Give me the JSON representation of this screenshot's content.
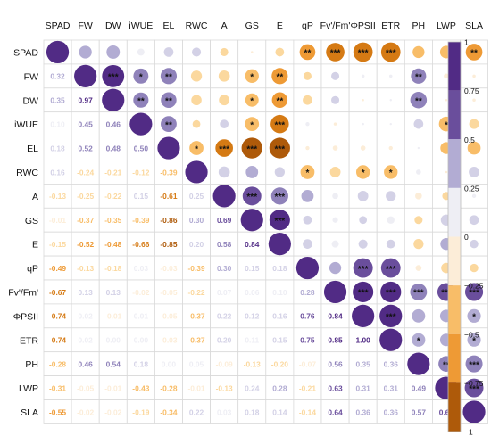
{
  "chart_data": {
    "type": "heatmap",
    "subtype": "correlation-matrix",
    "variables": [
      "SPAD",
      "FW",
      "DW",
      "iWUE",
      "EL",
      "RWC",
      "A",
      "GS",
      "E",
      "qP",
      "Fv'/Fm'",
      "ΦPSII",
      "ETR",
      "PH",
      "LWP",
      "SLA"
    ],
    "lower_triangle_values": [
      [],
      [
        0.32
      ],
      [
        0.35,
        0.97
      ],
      [
        0.1,
        0.45,
        0.46
      ],
      [
        0.18,
        0.52,
        0.48,
        0.5
      ],
      [
        0.16,
        -0.24,
        -0.21,
        -0.12,
        -0.39
      ],
      [
        -0.13,
        -0.25,
        -0.22,
        0.15,
        -0.61,
        0.25
      ],
      [
        -0.01,
        -0.37,
        -0.35,
        -0.39,
        -0.86,
        0.3,
        0.69
      ],
      [
        -0.15,
        -0.52,
        -0.48,
        -0.66,
        -0.85,
        0.2,
        0.58,
        0.84
      ],
      [
        -0.49,
        -0.13,
        -0.18,
        0.03,
        -0.03,
        -0.39,
        0.3,
        0.15,
        0.18
      ],
      [
        -0.67,
        0.13,
        0.13,
        -0.02,
        -0.05,
        -0.22,
        0.07,
        0.06,
        0.1,
        0.28
      ],
      [
        -0.74,
        0.02,
        -0.01,
        0.01,
        -0.05,
        -0.37,
        0.22,
        0.12,
        0.16,
        0.76,
        0.84
      ],
      [
        -0.74,
        0.02,
        0.0,
        0.0,
        -0.03,
        -0.37,
        0.2,
        0.11,
        0.15,
        0.75,
        0.85,
        1.0
      ],
      [
        -0.28,
        0.46,
        0.54,
        0.18,
        0.0,
        0.05,
        -0.09,
        -0.13,
        -0.2,
        -0.07,
        0.56,
        0.35,
        0.36
      ],
      [
        -0.31,
        -0.05,
        -0.01,
        -0.43,
        -0.28,
        -0.01,
        -0.13,
        0.24,
        0.28,
        -0.21,
        0.63,
        0.31,
        0.31,
        0.49
      ],
      [
        -0.55,
        -0.02,
        -0.02,
        -0.19,
        -0.34,
        0.22,
        0.03,
        0.18,
        0.14,
        -0.14,
        0.64,
        0.36,
        0.36,
        0.57,
        0.69
      ]
    ],
    "significance": [
      [
        "SPAD",
        "qP",
        "**"
      ],
      [
        "SPAD",
        "Fv'/Fm'",
        "***"
      ],
      [
        "SPAD",
        "ΦPSII",
        "***"
      ],
      [
        "SPAD",
        "ETR",
        "***"
      ],
      [
        "SPAD",
        "SLA",
        "**"
      ],
      [
        "FW",
        "DW",
        "***"
      ],
      [
        "FW",
        "iWUE",
        "*"
      ],
      [
        "FW",
        "EL",
        "**"
      ],
      [
        "FW",
        "GS",
        "*"
      ],
      [
        "FW",
        "E",
        "**"
      ],
      [
        "FW",
        "PH",
        "**"
      ],
      [
        "DW",
        "iWUE",
        "**"
      ],
      [
        "DW",
        "EL",
        "**"
      ],
      [
        "DW",
        "GS",
        "*"
      ],
      [
        "DW",
        "E",
        "**"
      ],
      [
        "DW",
        "PH",
        "**"
      ],
      [
        "iWUE",
        "EL",
        "**"
      ],
      [
        "iWUE",
        "GS",
        "*"
      ],
      [
        "iWUE",
        "E",
        "***"
      ],
      [
        "iWUE",
        "LWP",
        "*"
      ],
      [
        "EL",
        "RWC",
        "*"
      ],
      [
        "EL",
        "A",
        "***"
      ],
      [
        "EL",
        "GS",
        "***"
      ],
      [
        "EL",
        "E",
        "***"
      ],
      [
        "RWC",
        "qP",
        "*"
      ],
      [
        "RWC",
        "ΦPSII",
        "*"
      ],
      [
        "RWC",
        "ETR",
        "*"
      ],
      [
        "A",
        "GS",
        "***"
      ],
      [
        "A",
        "E",
        "***"
      ],
      [
        "GS",
        "E",
        "***"
      ],
      [
        "qP",
        "ΦPSII",
        "***"
      ],
      [
        "qP",
        "ETR",
        "***"
      ],
      [
        "Fv'/Fm'",
        "ΦPSII",
        "***"
      ],
      [
        "Fv'/Fm'",
        "ETR",
        "***"
      ],
      [
        "Fv'/Fm'",
        "PH",
        "***"
      ],
      [
        "Fv'/Fm'",
        "LWP",
        "***"
      ],
      [
        "Fv'/Fm'",
        "SLA",
        "***"
      ],
      [
        "ΦPSII",
        "ETR",
        "***"
      ],
      [
        "ΦPSII",
        "SLA",
        "*"
      ],
      [
        "ETR",
        "PH",
        "*"
      ],
      [
        "ETR",
        "SLA",
        "*"
      ],
      [
        "PH",
        "LWP",
        "**"
      ],
      [
        "PH",
        "SLA",
        "***"
      ],
      [
        "LWP",
        "SLA",
        "***"
      ]
    ],
    "colorbar": {
      "ticks": [
        "1",
        "0.75",
        "0.5",
        "0.25",
        "0",
        "−0.25",
        "−0.5",
        "−0.75",
        "−1"
      ],
      "range": [
        -1,
        1
      ]
    },
    "colors": {
      "positive": [
        "#eeeef4",
        "#d3d1e6",
        "#b2acd3",
        "#8f82ba",
        "#6a4e9c",
        "#512b85"
      ],
      "negative": [
        "#fcedd8",
        "#fbd89e",
        "#f8bd68",
        "#ee9a35",
        "#d57a14",
        "#ae5a0a"
      ]
    }
  }
}
